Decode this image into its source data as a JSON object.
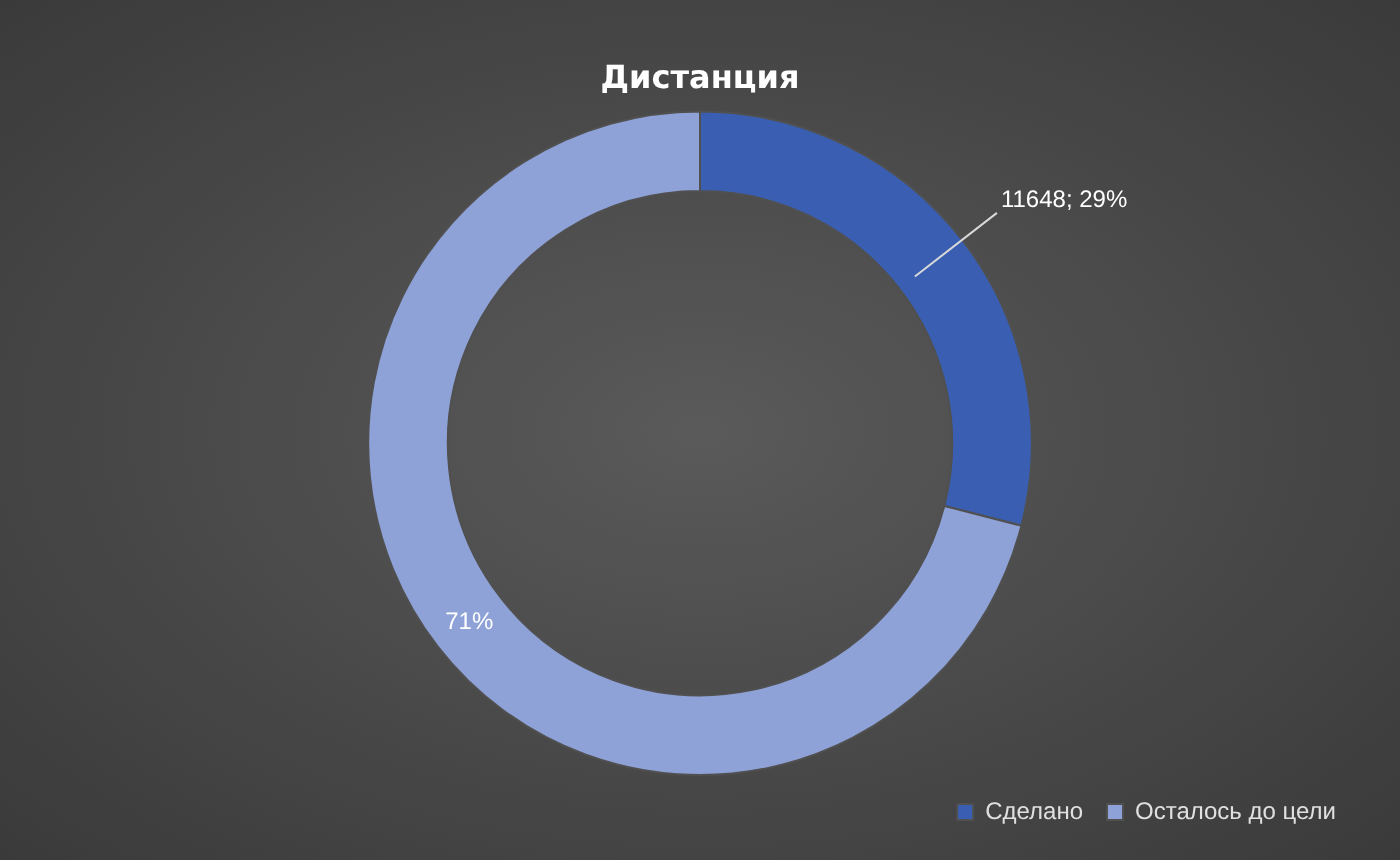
{
  "chart_data": {
    "type": "donut",
    "title": "Дистанция",
    "categories": [
      "Сделано",
      "Осталось до цели"
    ],
    "values": [
      29,
      71
    ],
    "colors": [
      "#3a5fb2",
      "#8ea2d8"
    ],
    "value_labels": [
      "11648; 29%",
      "71%"
    ],
    "legend": "bottom right"
  }
}
